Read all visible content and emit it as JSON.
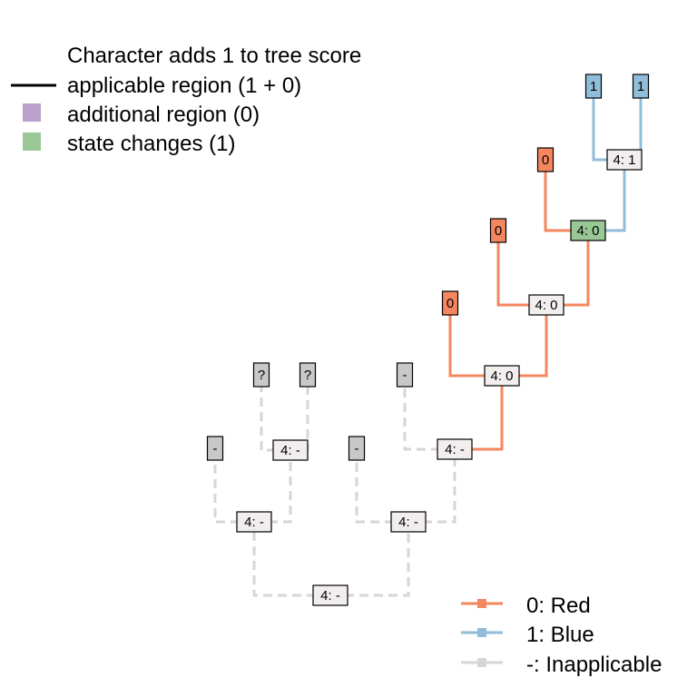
{
  "top_legend": {
    "title": "Character adds 1 to tree score",
    "items": [
      {
        "label": "applicable region (1 + 0)",
        "symbol": "line",
        "color": "#000000"
      },
      {
        "label": "additional region (0)",
        "symbol": "square",
        "color": "#B9A1CC"
      },
      {
        "label": "state changes (1)",
        "symbol": "square",
        "color": "#99C896"
      }
    ]
  },
  "state_legend": {
    "items": [
      {
        "label": "0: Red",
        "color": "#F4875F"
      },
      {
        "label": "1: Blue",
        "color": "#91BCDA"
      },
      {
        "label": "-: Inapplicable",
        "color": "#D6D6D6"
      }
    ]
  },
  "colors": {
    "red": "#F4875F",
    "blue": "#91BCDA",
    "inapplicable_edge": "#D6D6D6",
    "inapplicable_tip": "#C8C8C8",
    "internal_node": "#F2EEEE",
    "state_change_node": "#99C896"
  },
  "tips": [
    {
      "id": "t1",
      "label": "-",
      "state": "inapplicable"
    },
    {
      "id": "t2",
      "label": "?",
      "state": "unknown"
    },
    {
      "id": "t3",
      "label": "?",
      "state": "unknown"
    },
    {
      "id": "t4",
      "label": "-",
      "state": "inapplicable"
    },
    {
      "id": "t5",
      "label": "-",
      "state": "inapplicable"
    },
    {
      "id": "t6",
      "label": "0",
      "state": "red"
    },
    {
      "id": "t7",
      "label": "0",
      "state": "red"
    },
    {
      "id": "t8",
      "label": "0",
      "state": "red"
    },
    {
      "id": "t9",
      "label": "1",
      "state": "blue"
    },
    {
      "id": "t10",
      "label": "1",
      "state": "blue"
    }
  ],
  "internal_nodes": [
    {
      "id": "n1",
      "label": "4: -",
      "highlight": false
    },
    {
      "id": "n2",
      "label": "4: -",
      "highlight": false
    },
    {
      "id": "n3",
      "label": "4: -",
      "highlight": false
    },
    {
      "id": "n4",
      "label": "4: -",
      "highlight": false
    },
    {
      "id": "n5",
      "label": "4: -",
      "highlight": false
    },
    {
      "id": "n6",
      "label": "4: 0",
      "highlight": false
    },
    {
      "id": "n7",
      "label": "4: 0",
      "highlight": false
    },
    {
      "id": "n8",
      "label": "4: 0",
      "highlight": true
    },
    {
      "id": "n9",
      "label": "4: 1",
      "highlight": false
    }
  ],
  "edges": [
    {
      "parent": "n1",
      "child": "n2",
      "state": "inapplicable"
    },
    {
      "parent": "n1",
      "child": "n4",
      "state": "inapplicable"
    },
    {
      "parent": "n2",
      "child": "t1",
      "state": "inapplicable"
    },
    {
      "parent": "n2",
      "child": "n3",
      "state": "inapplicable"
    },
    {
      "parent": "n3",
      "child": "t2",
      "state": "inapplicable"
    },
    {
      "parent": "n3",
      "child": "t3",
      "state": "inapplicable"
    },
    {
      "parent": "n4",
      "child": "t4",
      "state": "inapplicable"
    },
    {
      "parent": "n4",
      "child": "n5",
      "state": "inapplicable"
    },
    {
      "parent": "n5",
      "child": "t5",
      "state": "inapplicable"
    },
    {
      "parent": "n5",
      "child": "n6",
      "state": "red"
    },
    {
      "parent": "n6",
      "child": "t6",
      "state": "red"
    },
    {
      "parent": "n6",
      "child": "n7",
      "state": "red"
    },
    {
      "parent": "n7",
      "child": "t7",
      "state": "red"
    },
    {
      "parent": "n7",
      "child": "n8",
      "state": "red"
    },
    {
      "parent": "n8",
      "child": "t8",
      "state": "red"
    },
    {
      "parent": "n8",
      "child": "n9",
      "state": "blue"
    },
    {
      "parent": "n9",
      "child": "t9",
      "state": "blue"
    },
    {
      "parent": "n9",
      "child": "t10",
      "state": "blue"
    }
  ]
}
